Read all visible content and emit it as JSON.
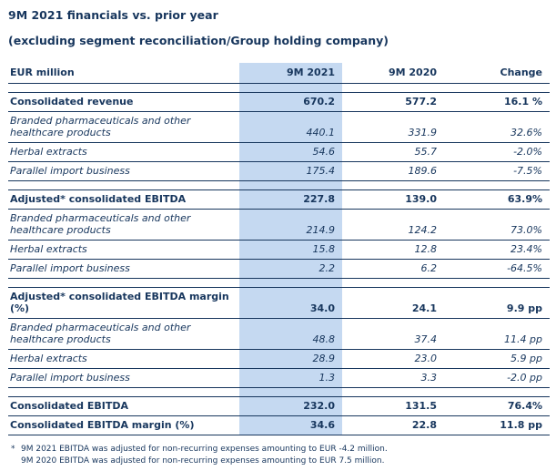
{
  "page": {
    "title": "9M 2021 financials vs. prior year",
    "subtitle": "(excluding segment reconciliation/Group holding company)"
  },
  "colors": {
    "text_navy": "#17365D",
    "border_navy": "#17365D",
    "highlight_blue": "#C5D9F1"
  },
  "table": {
    "columns": {
      "label": "EUR million",
      "y2021": "9M 2021",
      "y2020": "9M 2020",
      "change": "Change"
    },
    "rows": [
      {
        "label": "Consolidated revenue",
        "y2021": "670.2",
        "y2020": "577.2",
        "change": "16.1 %"
      },
      {
        "label": "Branded pharmaceuticals and other healthcare products",
        "y2021": "440.1",
        "y2020": "331.9",
        "change": "32.6%"
      },
      {
        "label": "Herbal extracts",
        "y2021": "54.6",
        "y2020": "55.7",
        "change": "-2.0%"
      },
      {
        "label": "Parallel import business",
        "y2021": "175.4",
        "y2020": "189.6",
        "change": "-7.5%"
      },
      {
        "label": "Adjusted* consolidated EBITDA",
        "y2021": "227.8",
        "y2020": "139.0",
        "change": "63.9%"
      },
      {
        "label": "Branded pharmaceuticals and other healthcare products",
        "y2021": "214.9",
        "y2020": "124.2",
        "change": "73.0%"
      },
      {
        "label": "Herbal extracts",
        "y2021": "15.8",
        "y2020": "12.8",
        "change": "23.4%"
      },
      {
        "label": "Parallel import business",
        "y2021": "2.2",
        "y2020": "6.2",
        "change": "-64.5%"
      },
      {
        "label": "Adjusted* consolidated EBITDA margin (%)",
        "y2021": "34.0",
        "y2020": "24.1",
        "change": "9.9 pp"
      },
      {
        "label": "Branded pharmaceuticals and other healthcare products",
        "y2021": "48.8",
        "y2020": "37.4",
        "change": "11.4 pp"
      },
      {
        "label": "Herbal extracts",
        "y2021": "28.9",
        "y2020": "23.0",
        "change": "5.9 pp"
      },
      {
        "label": "Parallel import business",
        "y2021": "1.3",
        "y2020": "3.3",
        "change": "-2.0 pp"
      },
      {
        "label": "Consolidated EBITDA",
        "y2021": "232.0",
        "y2020": "131.5",
        "change": "76.4%"
      },
      {
        "label": "Consolidated EBITDA margin (%)",
        "y2021": "34.6",
        "y2020": "22.8",
        "change": "11.8 pp"
      }
    ]
  },
  "footnotes": [
    {
      "marker": "*",
      "text": "9M 2021 EBITDA was adjusted for non-recurring expenses amounting to EUR -4.2 million."
    },
    {
      "marker": "",
      "text": "9M 2020 EBITDA was adjusted for non-recurring expenses amounting to EUR 7.5 million."
    }
  ]
}
